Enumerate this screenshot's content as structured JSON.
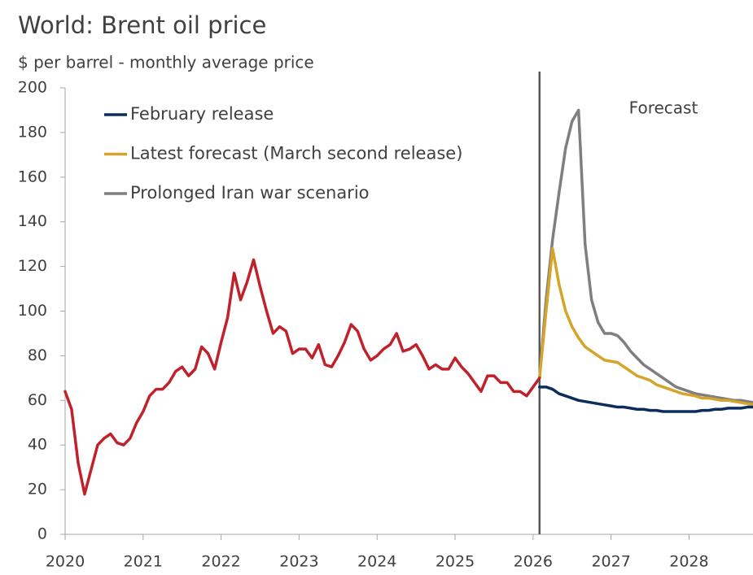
{
  "chart_data": {
    "type": "line",
    "title": "World: Brent oil price",
    "subtitle": "$ per barrel - monthly average price",
    "annotation": "Forecast",
    "forecast_start": 2026.083,
    "xlim": [
      2020,
      2028.82
    ],
    "xticks": [
      2020,
      2021,
      2022,
      2023,
      2024,
      2025,
      2026,
      2027,
      2028
    ],
    "ylim": [
      0,
      200
    ],
    "yticks": [
      0,
      20,
      40,
      60,
      80,
      100,
      120,
      140,
      160,
      180,
      200
    ],
    "series": [
      {
        "color": "#c0222c",
        "x": [
          2020,
          2020.083,
          2020.167,
          2020.25,
          2020.333,
          2020.417,
          2020.5,
          2020.583,
          2020.667,
          2020.75,
          2020.833,
          2020.917,
          2021,
          2021.083,
          2021.167,
          2021.25,
          2021.333,
          2021.417,
          2021.5,
          2021.583,
          2021.667,
          2021.75,
          2021.833,
          2021.917,
          2022,
          2022.083,
          2022.167,
          2022.25,
          2022.333,
          2022.417,
          2022.5,
          2022.583,
          2022.667,
          2022.75,
          2022.833,
          2022.917,
          2023,
          2023.083,
          2023.167,
          2023.25,
          2023.333,
          2023.417,
          2023.5,
          2023.583,
          2023.667,
          2023.75,
          2023.833,
          2023.917,
          2024,
          2024.083,
          2024.167,
          2024.25,
          2024.333,
          2024.417,
          2024.5,
          2024.583,
          2024.667,
          2024.75,
          2024.833,
          2024.917,
          2025,
          2025.083,
          2025.167,
          2025.25,
          2025.333,
          2025.417,
          2025.5,
          2025.583,
          2025.667,
          2025.75,
          2025.833,
          2025.917,
          2026,
          2026.083
        ],
        "values": [
          64,
          56,
          32,
          18,
          29,
          40,
          43,
          45,
          41,
          40,
          43,
          50,
          55,
          62,
          65,
          65,
          68,
          73,
          75,
          71,
          74,
          84,
          81,
          74,
          86,
          97,
          117,
          105,
          113,
          123,
          111,
          100,
          90,
          93,
          91,
          81,
          83,
          83,
          79,
          85,
          76,
          75,
          80,
          86,
          94,
          91,
          83,
          78,
          80,
          83,
          85,
          90,
          82,
          83,
          85,
          80,
          74,
          76,
          74,
          74,
          79,
          75,
          72,
          68,
          64,
          71,
          71,
          68,
          68,
          64,
          64,
          62,
          66,
          70
        ]
      },
      {
        "name": "February release",
        "color": "#0b2d5e",
        "x": [
          2026.083,
          2026.167,
          2026.25,
          2026.333,
          2026.417,
          2026.5,
          2026.583,
          2026.667,
          2026.75,
          2026.833,
          2026.917,
          2027,
          2027.083,
          2027.167,
          2027.25,
          2027.333,
          2027.417,
          2027.5,
          2027.583,
          2027.667,
          2027.75,
          2027.833,
          2027.917,
          2028,
          2028.083,
          2028.167,
          2028.25,
          2028.333,
          2028.417,
          2028.5,
          2028.583,
          2028.667,
          2028.75,
          2028.833,
          2028.917
        ],
        "values": [
          66,
          66,
          65,
          63,
          62,
          61,
          60,
          59.5,
          59,
          58.5,
          58,
          57.5,
          57,
          57,
          56.5,
          56,
          56,
          55.5,
          55.5,
          55,
          55,
          55,
          55,
          55,
          55,
          55.5,
          55.5,
          56,
          56,
          56.5,
          56.5,
          56.5,
          57,
          57,
          57
        ]
      },
      {
        "name": "Latest forecast (March second release)",
        "color": "#d4a52a",
        "x": [
          2026.083,
          2026.167,
          2026.25,
          2026.333,
          2026.417,
          2026.5,
          2026.583,
          2026.667,
          2026.75,
          2026.833,
          2026.917,
          2027,
          2027.083,
          2027.167,
          2027.25,
          2027.333,
          2027.417,
          2027.5,
          2027.583,
          2027.667,
          2027.75,
          2027.833,
          2027.917,
          2028,
          2028.083,
          2028.167,
          2028.25,
          2028.333,
          2028.417,
          2028.5,
          2028.583,
          2028.667,
          2028.75,
          2028.833,
          2028.917
        ],
        "values": [
          70,
          100,
          128,
          112,
          100,
          93,
          88,
          84,
          82,
          80,
          78,
          77.5,
          77,
          75,
          73,
          71,
          70,
          69,
          67,
          66,
          65,
          64,
          63,
          62.5,
          62,
          61,
          61,
          60.5,
          60,
          60,
          59.5,
          59,
          58.5,
          58,
          58
        ]
      },
      {
        "name": "Prolonged Iran war scenario",
        "color": "#7f7f7f",
        "x": [
          2026.083,
          2026.167,
          2026.25,
          2026.333,
          2026.417,
          2026.5,
          2026.583,
          2026.667,
          2026.75,
          2026.833,
          2026.917,
          2027,
          2027.083,
          2027.167,
          2027.25,
          2027.333,
          2027.417,
          2027.5,
          2027.583,
          2027.667,
          2027.75,
          2027.833,
          2027.917,
          2028,
          2028.083,
          2028.167,
          2028.25,
          2028.333,
          2028.417,
          2028.5,
          2028.583,
          2028.667,
          2028.75,
          2028.833,
          2028.917
        ],
        "values": [
          70,
          105,
          132,
          153,
          173,
          185,
          190,
          130,
          105,
          95,
          90,
          90,
          89,
          86,
          82,
          79,
          76,
          74,
          72,
          70,
          68,
          66,
          65,
          64,
          63,
          62.5,
          62,
          61.5,
          61,
          60.5,
          60,
          60,
          59.5,
          59,
          59
        ]
      }
    ]
  }
}
